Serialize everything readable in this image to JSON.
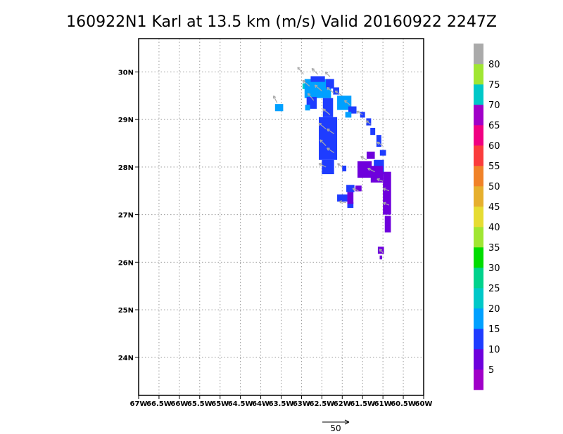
{
  "chart_data": {
    "type": "heatmap",
    "title": "160922N1 Karl at 13.5 km (m/s) Valid 20160922  2247Z",
    "x_range": [
      -67,
      -60
    ],
    "y_range": [
      23.2,
      30.7
    ],
    "x_ticks": [
      {
        "value": -67,
        "label": "67W"
      },
      {
        "value": -66.5,
        "label": "66.5W"
      },
      {
        "value": -66,
        "label": "66W"
      },
      {
        "value": -65.5,
        "label": "65.5W"
      },
      {
        "value": -65,
        "label": "65W"
      },
      {
        "value": -64.5,
        "label": "64.5W"
      },
      {
        "value": -64,
        "label": "64W"
      },
      {
        "value": -63.5,
        "label": "63.5W"
      },
      {
        "value": -63,
        "label": "63W"
      },
      {
        "value": -62.5,
        "label": "62.5W"
      },
      {
        "value": -62,
        "label": "62W"
      },
      {
        "value": -61.5,
        "label": "61.5W"
      },
      {
        "value": -61,
        "label": "61W"
      },
      {
        "value": -60.5,
        "label": "60.5W"
      },
      {
        "value": -60,
        "label": "60W"
      }
    ],
    "y_ticks": [
      {
        "value": 24,
        "label": "24N"
      },
      {
        "value": 25,
        "label": "25N"
      },
      {
        "value": 26,
        "label": "26N"
      },
      {
        "value": 27,
        "label": "27N"
      },
      {
        "value": 28,
        "label": "28N"
      },
      {
        "value": 29,
        "label": "29N"
      },
      {
        "value": 30,
        "label": "30N"
      }
    ],
    "grid": true,
    "colorbar": {
      "placement": "right",
      "levels": [
        0,
        5,
        10,
        15,
        20,
        25,
        30,
        35,
        40,
        45,
        50,
        55,
        60,
        65,
        70,
        75,
        80,
        85
      ],
      "colors": [
        "#a000c8",
        "#6e00dc",
        "#1e3cff",
        "#00a0ff",
        "#00c8c8",
        "#00d28c",
        "#00dc00",
        "#a0e632",
        "#e6dc32",
        "#e6af2d",
        "#f08228",
        "#fa3c3c",
        "#f00082",
        "#a000c8",
        "#00c8c8",
        "#a0e632",
        "#aaaaaa"
      ],
      "labels": [
        "5",
        "10",
        "15",
        "20",
        "25",
        "30",
        "35",
        "40",
        "45",
        "50",
        "55",
        "60",
        "65",
        "70",
        "75",
        "80"
      ]
    },
    "cells": [
      {
        "lon": -63.55,
        "lat": 29.25,
        "w": 0.2,
        "h": 0.15,
        "value": 16
      },
      {
        "lon": -62.9,
        "lat": 29.7,
        "w": 0.15,
        "h": 0.12,
        "value": 21
      },
      {
        "lon": -62.6,
        "lat": 29.65,
        "w": 0.65,
        "h": 0.4,
        "value": 17
      },
      {
        "lon": -62.6,
        "lat": 29.85,
        "w": 0.35,
        "h": 0.12,
        "value": 12
      },
      {
        "lon": -62.3,
        "lat": 29.75,
        "w": 0.2,
        "h": 0.2,
        "value": 12
      },
      {
        "lon": -62.15,
        "lat": 29.6,
        "w": 0.15,
        "h": 0.15,
        "value": 12
      },
      {
        "lon": -62.75,
        "lat": 29.35,
        "w": 0.25,
        "h": 0.25,
        "value": 12
      },
      {
        "lon": -62.85,
        "lat": 29.25,
        "w": 0.12,
        "h": 0.12,
        "value": 17
      },
      {
        "lon": -62.35,
        "lat": 29.25,
        "w": 0.25,
        "h": 0.4,
        "value": 12
      },
      {
        "lon": -61.95,
        "lat": 29.35,
        "w": 0.35,
        "h": 0.3,
        "value": 17
      },
      {
        "lon": -61.75,
        "lat": 29.2,
        "w": 0.2,
        "h": 0.15,
        "value": 12
      },
      {
        "lon": -61.85,
        "lat": 29.1,
        "w": 0.15,
        "h": 0.12,
        "value": 17
      },
      {
        "lon": -61.5,
        "lat": 29.1,
        "w": 0.12,
        "h": 0.12,
        "value": 12
      },
      {
        "lon": -61.35,
        "lat": 28.95,
        "w": 0.12,
        "h": 0.15,
        "value": 12
      },
      {
        "lon": -61.25,
        "lat": 28.75,
        "w": 0.12,
        "h": 0.15,
        "value": 12
      },
      {
        "lon": -61.1,
        "lat": 28.55,
        "w": 0.12,
        "h": 0.25,
        "value": 12
      },
      {
        "lon": -61.0,
        "lat": 28.3,
        "w": 0.15,
        "h": 0.12,
        "value": 12
      },
      {
        "lon": -62.35,
        "lat": 28.6,
        "w": 0.45,
        "h": 0.9,
        "value": 12
      },
      {
        "lon": -62.35,
        "lat": 28.0,
        "w": 0.3,
        "h": 0.3,
        "value": 12
      },
      {
        "lon": -61.95,
        "lat": 27.97,
        "w": 0.1,
        "h": 0.12,
        "value": 12
      },
      {
        "lon": -61.1,
        "lat": 28.0,
        "w": 0.25,
        "h": 0.3,
        "value": 12
      },
      {
        "lon": -61.8,
        "lat": 27.55,
        "w": 0.2,
        "h": 0.15,
        "value": 12
      },
      {
        "lon": -62.0,
        "lat": 27.35,
        "w": 0.25,
        "h": 0.15,
        "value": 12
      },
      {
        "lon": -61.8,
        "lat": 27.2,
        "w": 0.15,
        "h": 0.12,
        "value": 12
      },
      {
        "lon": -61.45,
        "lat": 27.95,
        "w": 0.35,
        "h": 0.35,
        "value": 6
      },
      {
        "lon": -61.3,
        "lat": 28.25,
        "w": 0.2,
        "h": 0.15,
        "value": 6
      },
      {
        "lon": -61.15,
        "lat": 27.85,
        "w": 0.3,
        "h": 0.35,
        "value": 6
      },
      {
        "lon": -60.9,
        "lat": 27.45,
        "w": 0.2,
        "h": 0.9,
        "value": 6
      },
      {
        "lon": -60.88,
        "lat": 26.8,
        "w": 0.15,
        "h": 0.35,
        "value": 6
      },
      {
        "lon": -61.6,
        "lat": 27.55,
        "w": 0.15,
        "h": 0.12,
        "value": 6
      },
      {
        "lon": -61.8,
        "lat": 27.35,
        "w": 0.15,
        "h": 0.25,
        "value": 6
      },
      {
        "lon": -61.05,
        "lat": 26.25,
        "w": 0.15,
        "h": 0.15,
        "value": 6
      },
      {
        "lon": -61.05,
        "lat": 26.1,
        "w": 0.06,
        "h": 0.08,
        "value": 6
      }
    ],
    "vectors": {
      "reference_label": "50",
      "reference_speed_ms": 50,
      "samples": [
        {
          "lon": -63.6,
          "lat": 29.35,
          "u": -3,
          "v": 6
        },
        {
          "lon": -62.95,
          "lat": 29.95,
          "u": -5,
          "v": 6
        },
        {
          "lon": -62.8,
          "lat": 29.7,
          "u": -6,
          "v": 5
        },
        {
          "lon": -62.6,
          "lat": 29.95,
          "u": -5,
          "v": 5
        },
        {
          "lon": -62.5,
          "lat": 29.6,
          "u": -6,
          "v": 5
        },
        {
          "lon": -62.3,
          "lat": 29.9,
          "u": -4,
          "v": 4
        },
        {
          "lon": -62.2,
          "lat": 29.55,
          "u": -6,
          "v": 5
        },
        {
          "lon": -62.7,
          "lat": 29.4,
          "u": -5,
          "v": 6
        },
        {
          "lon": -62.0,
          "lat": 29.5,
          "u": -6,
          "v": 4
        },
        {
          "lon": -61.8,
          "lat": 29.3,
          "u": -5,
          "v": 4
        },
        {
          "lon": -61.5,
          "lat": 29.1,
          "u": -5,
          "v": 3
        },
        {
          "lon": -61.3,
          "lat": 28.9,
          "u": -4,
          "v": 3
        },
        {
          "lon": -62.3,
          "lat": 29.1,
          "u": -6,
          "v": 5
        },
        {
          "lon": -62.4,
          "lat": 28.8,
          "u": -6,
          "v": 5
        },
        {
          "lon": -62.2,
          "lat": 28.7,
          "u": -6,
          "v": 4
        },
        {
          "lon": -62.4,
          "lat": 28.45,
          "u": -5,
          "v": 5
        },
        {
          "lon": -62.2,
          "lat": 28.3,
          "u": -6,
          "v": 4
        },
        {
          "lon": -62.4,
          "lat": 28.0,
          "u": -6,
          "v": 3
        },
        {
          "lon": -62.0,
          "lat": 28.0,
          "u": -4,
          "v": 3
        },
        {
          "lon": -61.4,
          "lat": 28.15,
          "u": -5,
          "v": 3
        },
        {
          "lon": -61.2,
          "lat": 27.9,
          "u": -6,
          "v": 3
        },
        {
          "lon": -61.0,
          "lat": 27.7,
          "u": -5,
          "v": 2
        },
        {
          "lon": -60.85,
          "lat": 27.5,
          "u": -5,
          "v": 2
        },
        {
          "lon": -60.85,
          "lat": 27.2,
          "u": -5,
          "v": 2
        },
        {
          "lon": -61.6,
          "lat": 27.5,
          "u": -5,
          "v": 2
        },
        {
          "lon": -61.9,
          "lat": 27.25,
          "u": -6,
          "v": 1
        },
        {
          "lon": -61.0,
          "lat": 26.2,
          "u": -3,
          "v": 3
        },
        {
          "lon": -61.0,
          "lat": 28.45,
          "u": -5,
          "v": 3
        }
      ]
    }
  }
}
